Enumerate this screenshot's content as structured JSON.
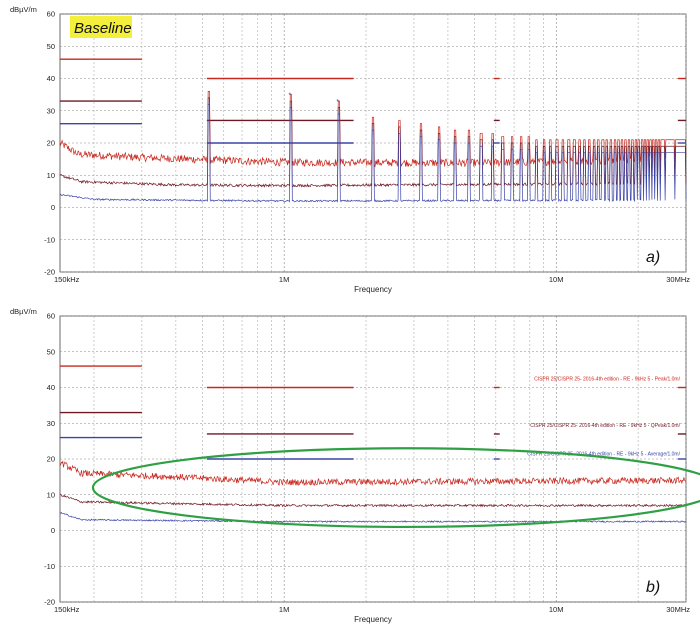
{
  "chart_data": [
    {
      "type": "line",
      "title": "Baseline",
      "ylabel": "dBµV/m",
      "xlabel": "Frequency",
      "panel_label": "a)",
      "x_scale": "log",
      "xlim_hz": [
        150000,
        30000000
      ],
      "ylim": [
        -20,
        60
      ],
      "y_ticks": [
        "60",
        "50",
        "40",
        "30",
        "20",
        "10",
        "0",
        "-10",
        "-20"
      ],
      "x_ticks": [
        {
          "label": "150kHz",
          "hz": 150000
        },
        {
          "label": "1M",
          "hz": 1000000
        },
        {
          "label": "10M",
          "hz": 10000000
        },
        {
          "label": "30MHz",
          "hz": 30000000
        }
      ],
      "series": [
        {
          "key": "peak",
          "color": "#c8281e",
          "base_db": [
            [
              150000,
              20
            ],
            [
              175000,
              16.5
            ],
            [
              300000,
              15.5
            ],
            [
              1000000,
              14
            ],
            [
              5000000,
              13.8
            ],
            [
              30000000,
              15
            ]
          ],
          "noise": 1.2
        },
        {
          "key": "qpeak",
          "color": "#6e1a24",
          "base_db": [
            [
              150000,
              10
            ],
            [
              180000,
              8
            ],
            [
              400000,
              7
            ],
            [
              1000000,
              6.8
            ],
            [
              30000000,
              7.5
            ]
          ],
          "noise": 0.4
        },
        {
          "key": "avg",
          "color": "#3a44a8",
          "base_db": [
            [
              150000,
              4
            ],
            [
              200000,
              2.5
            ],
            [
              1000000,
              2
            ],
            [
              30000000,
              2.3
            ]
          ],
          "noise": 0.25
        }
      ],
      "harmonics": {
        "start_hz": 530000,
        "step_hz": 530000,
        "peak_db": [
          36,
          35,
          33,
          28,
          27,
          26,
          25,
          24,
          24,
          23,
          23,
          22,
          22,
          22,
          22,
          21,
          21,
          21,
          21,
          21,
          21,
          21,
          21,
          21,
          21,
          21,
          21,
          21,
          21,
          21,
          21,
          21,
          21,
          21,
          21,
          21,
          21,
          21,
          21,
          21,
          21,
          21,
          21,
          21,
          21,
          21,
          21,
          21,
          21,
          21,
          21,
          21,
          21,
          21,
          21,
          21
        ]
      },
      "limits": [
        {
          "color": "#c8281e",
          "segments": [
            [
              150000,
              300000,
              46
            ],
            [
              520000,
              1800000,
              40
            ],
            [
              5900000,
              6200000,
              40
            ],
            [
              28000000,
              30000000,
              40
            ]
          ]
        },
        {
          "color": "#6e1a24",
          "segments": [
            [
              150000,
              300000,
              33
            ],
            [
              520000,
              1800000,
              27
            ],
            [
              5900000,
              6200000,
              27
            ],
            [
              28000000,
              30000000,
              27
            ]
          ]
        },
        {
          "color": "#3a44a8",
          "segments": [
            [
              150000,
              300000,
              26
            ],
            [
              520000,
              1800000,
              20
            ],
            [
              5900000,
              6200000,
              20
            ],
            [
              28000000,
              30000000,
              20
            ]
          ]
        }
      ]
    },
    {
      "type": "line",
      "ylabel": "dBµV/m",
      "xlabel": "Frequency",
      "panel_label": "b)",
      "x_scale": "log",
      "xlim_hz": [
        150000,
        30000000
      ],
      "ylim": [
        -20,
        60
      ],
      "y_ticks": [
        "60",
        "50",
        "40",
        "30",
        "20",
        "10",
        "0",
        "-10",
        "-20"
      ],
      "x_ticks": [
        {
          "label": "150kHz",
          "hz": 150000
        },
        {
          "label": "1M",
          "hz": 1000000
        },
        {
          "label": "10M",
          "hz": 10000000
        },
        {
          "label": "30MHz",
          "hz": 30000000
        }
      ],
      "series": [
        {
          "key": "peak",
          "color": "#c8281e",
          "base_db": [
            [
              150000,
              19
            ],
            [
              180000,
              16
            ],
            [
              400000,
              15
            ],
            [
              1000000,
              13.5
            ],
            [
              30000000,
              14
            ]
          ],
          "noise": 0.9
        },
        {
          "key": "qpeak",
          "color": "#6e1a24",
          "base_db": [
            [
              150000,
              10
            ],
            [
              180000,
              8
            ],
            [
              1000000,
              7
            ],
            [
              30000000,
              7
            ]
          ],
          "noise": 0.3
        },
        {
          "key": "avg",
          "color": "#3a44a8",
          "base_db": [
            [
              150000,
              5
            ],
            [
              180000,
              3
            ],
            [
              1000000,
              2.5
            ],
            [
              30000000,
              2.5
            ]
          ],
          "noise": 0.2
        }
      ],
      "spikes": [
        {
          "hz": 530000,
          "db": [
            11,
            6
          ]
        },
        {
          "hz": 1000000,
          "db": [
            9,
            4
          ]
        },
        {
          "hz": 1540000,
          "db": [
            7,
            3
          ]
        }
      ],
      "limits": [
        {
          "color": "#c8281e",
          "segments": [
            [
              150000,
              300000,
              46
            ],
            [
              520000,
              1800000,
              40
            ],
            [
              5900000,
              6200000,
              40
            ],
            [
              28000000,
              30000000,
              40
            ]
          ]
        },
        {
          "color": "#6e1a24",
          "segments": [
            [
              150000,
              300000,
              33
            ],
            [
              520000,
              1800000,
              27
            ],
            [
              5900000,
              6200000,
              27
            ],
            [
              28000000,
              30000000,
              27
            ]
          ]
        },
        {
          "color": "#3a44a8",
          "segments": [
            [
              150000,
              300000,
              26
            ],
            [
              520000,
              1800000,
              20
            ],
            [
              5900000,
              6200000,
              20
            ],
            [
              28000000,
              30000000,
              20
            ]
          ]
        }
      ],
      "legend": [
        {
          "text": "CISPR 25/CISPR 25- 2016-4th edition - RE - 9kHz 5 - Peak/1.0m/",
          "color": "#c8281e",
          "db": 42
        },
        {
          "text": "CISPR 25/CISPR 25- 2016-4th edition - RE - 9kHz 5 - QPeak/1.0m/",
          "color": "#6e1a24",
          "db": 29
        },
        {
          "text": "CISPR 25/CISPR 25- 2016-4th edition - RE - 9kHz 5 - Average/1.0m/",
          "color": "#3a44a8",
          "db": 21
        }
      ],
      "highlight_ellipse": {
        "color": "#2ea043",
        "center_hz": 2800000,
        "center_db": 12,
        "rx_decades": 1.15,
        "ry_db": 11
      }
    }
  ]
}
